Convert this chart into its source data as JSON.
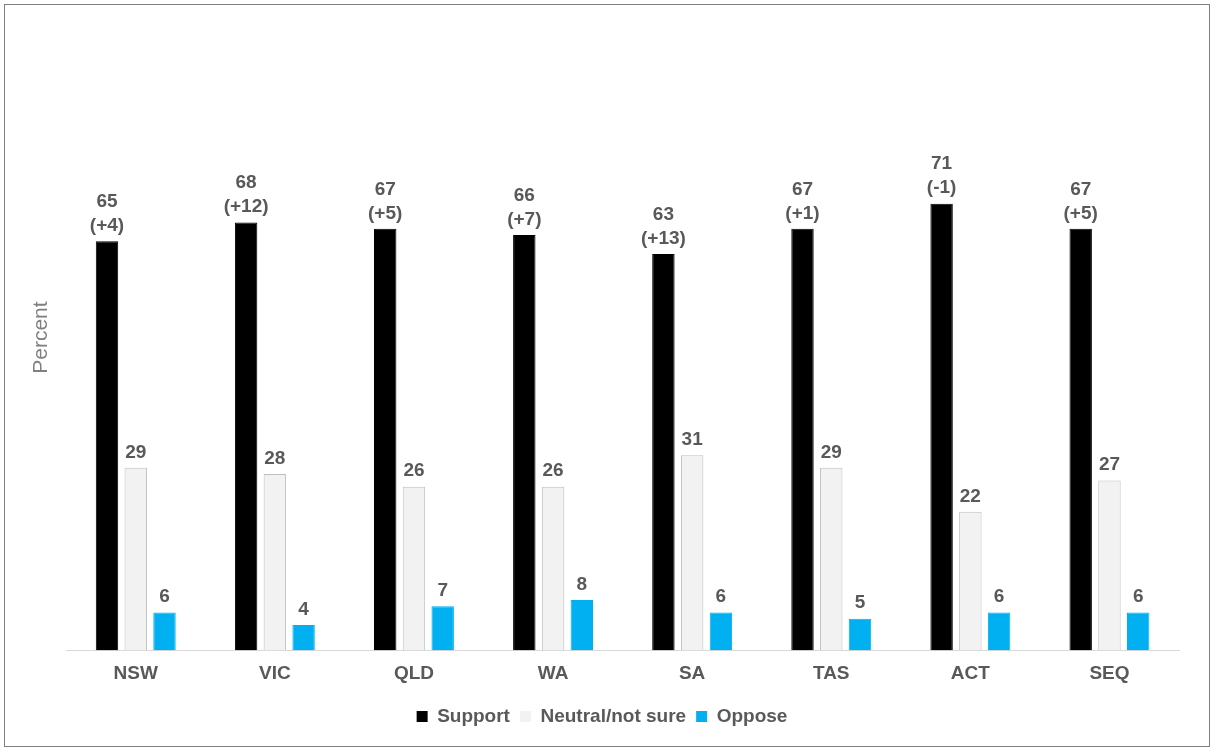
{
  "chart_data": {
    "type": "bar",
    "ylabel": "Percent",
    "categories": [
      "NSW",
      "VIC",
      "QLD",
      "WA",
      "SA",
      "TAS",
      "ACT",
      "SEQ"
    ],
    "series": [
      {
        "name": "Support",
        "color": "#000000",
        "values": [
          65,
          68,
          67,
          66,
          63,
          67,
          71,
          67
        ],
        "value_labels": [
          "65\n(+4)",
          "68\n(+12)",
          "67\n(+5)",
          "66\n(+7)",
          "63\n(+13)",
          "67\n(+1)",
          "71\n(-1)",
          "67\n(+5)"
        ]
      },
      {
        "name": "Neutral/not sure",
        "color": "#f2f2f2",
        "values": [
          29,
          28,
          26,
          26,
          31,
          29,
          22,
          27
        ],
        "value_labels": [
          "29",
          "28",
          "26",
          "26",
          "31",
          "29",
          "22",
          "27"
        ]
      },
      {
        "name": "Oppose",
        "color": "#00b0f0",
        "values": [
          6,
          4,
          7,
          8,
          6,
          5,
          6,
          6
        ],
        "value_labels": [
          "6",
          "4",
          "7",
          "8",
          "6",
          "5",
          "6",
          "6"
        ]
      }
    ],
    "legend": "bottom",
    "tick_labels": "x",
    "grid": false
  }
}
